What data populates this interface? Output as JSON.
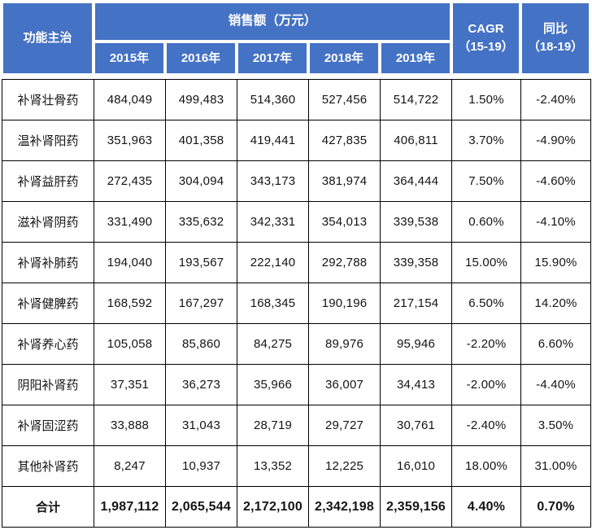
{
  "colors": {
    "header_bg": "#4472c4",
    "header_text": "#ffffff",
    "body_text": "#141414",
    "grid_line": "#000000"
  },
  "table": {
    "header": {
      "function_label": "功能主治",
      "sales_group_label": "销售额（万元）",
      "years": [
        "2015年",
        "2016年",
        "2017年",
        "2018年",
        "2019年"
      ],
      "cagr_line1": "CAGR",
      "cagr_line2": "（15-19）",
      "yoy_line1": "同比",
      "yoy_line2": "（18-19）"
    },
    "rows": [
      {
        "label": "补肾壮骨药",
        "values": [
          "484,049",
          "499,483",
          "514,360",
          "527,456",
          "514,722"
        ],
        "cagr": "1.50%",
        "yoy": "-2.40%"
      },
      {
        "label": "温补肾阳药",
        "values": [
          "351,963",
          "401,358",
          "419,441",
          "427,835",
          "406,811"
        ],
        "cagr": "3.70%",
        "yoy": "-4.90%"
      },
      {
        "label": "补肾益肝药",
        "values": [
          "272,435",
          "304,094",
          "343,173",
          "381,974",
          "364,444"
        ],
        "cagr": "7.50%",
        "yoy": "-4.60%"
      },
      {
        "label": "滋补肾阴药",
        "values": [
          "331,490",
          "335,632",
          "342,331",
          "354,013",
          "339,538"
        ],
        "cagr": "0.60%",
        "yoy": "-4.10%"
      },
      {
        "label": "补肾补肺药",
        "values": [
          "194,040",
          "193,567",
          "222,140",
          "292,788",
          "339,358"
        ],
        "cagr": "15.00%",
        "yoy": "15.90%"
      },
      {
        "label": "补肾健脾药",
        "values": [
          "168,592",
          "167,297",
          "168,345",
          "190,196",
          "217,154"
        ],
        "cagr": "6.50%",
        "yoy": "14.20%"
      },
      {
        "label": "补肾养心药",
        "values": [
          "105,058",
          "85,860",
          "84,275",
          "89,976",
          "95,946"
        ],
        "cagr": "-2.20%",
        "yoy": "6.60%"
      },
      {
        "label": "阴阳补肾药",
        "values": [
          "37,351",
          "36,273",
          "35,966",
          "36,007",
          "34,413"
        ],
        "cagr": "-2.00%",
        "yoy": "-4.40%"
      },
      {
        "label": "补肾固涩药",
        "values": [
          "33,888",
          "31,043",
          "28,719",
          "29,727",
          "30,761"
        ],
        "cagr": "-2.40%",
        "yoy": "3.50%"
      },
      {
        "label": "其他补肾药",
        "values": [
          "8,247",
          "10,937",
          "13,352",
          "12,225",
          "16,010"
        ],
        "cagr": "18.00%",
        "yoy": "31.00%"
      }
    ],
    "total": {
      "label": "合计",
      "values": [
        "1,987,112",
        "2,065,544",
        "2,172,100",
        "2,342,198",
        "2,359,156"
      ],
      "cagr": "4.40%",
      "yoy": "0.70%"
    }
  },
  "chart_data": {
    "type": "table",
    "title": "销售额（万元）",
    "columns": [
      "功能主治",
      "2015年",
      "2016年",
      "2017年",
      "2018年",
      "2019年",
      "CAGR（15-19）",
      "同比（18-19）"
    ],
    "rows": [
      [
        "补肾壮骨药",
        484049,
        499483,
        514360,
        527456,
        514722,
        "1.50%",
        "-2.40%"
      ],
      [
        "温补肾阳药",
        351963,
        401358,
        419441,
        427835,
        406811,
        "3.70%",
        "-4.90%"
      ],
      [
        "补肾益肝药",
        272435,
        304094,
        343173,
        381974,
        364444,
        "7.50%",
        "-4.60%"
      ],
      [
        "滋补肾阴药",
        331490,
        335632,
        342331,
        354013,
        339538,
        "0.60%",
        "-4.10%"
      ],
      [
        "补肾补肺药",
        194040,
        193567,
        222140,
        292788,
        339358,
        "15.00%",
        "15.90%"
      ],
      [
        "补肾健脾药",
        168592,
        167297,
        168345,
        190196,
        217154,
        "6.50%",
        "14.20%"
      ],
      [
        "补肾养心药",
        105058,
        85860,
        84275,
        89976,
        95946,
        "-2.20%",
        "6.60%"
      ],
      [
        "阴阳补肾药",
        37351,
        36273,
        35966,
        36007,
        34413,
        "-2.00%",
        "-4.40%"
      ],
      [
        "补肾固涩药",
        33888,
        31043,
        28719,
        29727,
        30761,
        "-2.40%",
        "3.50%"
      ],
      [
        "其他补肾药",
        8247,
        10937,
        13352,
        12225,
        16010,
        "18.00%",
        "31.00%"
      ],
      [
        "合计",
        1987112,
        2065544,
        2172100,
        2342198,
        2359156,
        "4.40%",
        "0.70%"
      ]
    ]
  }
}
